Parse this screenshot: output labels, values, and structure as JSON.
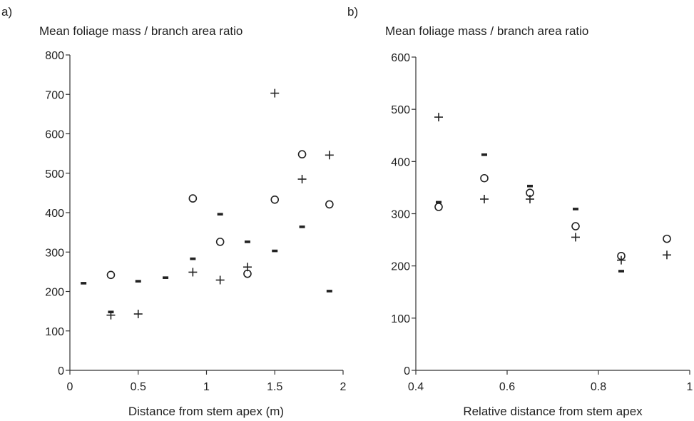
{
  "chart_data": [
    {
      "type": "scatter",
      "panel_label": "a)",
      "title": "Mean foliage mass / branch area ratio",
      "xlabel": "Distance from stem apex (m)",
      "ylabel": "",
      "xlim": [
        0,
        2
      ],
      "ylim": [
        0,
        800
      ],
      "xticks": [
        0,
        0.5,
        1,
        1.5,
        2
      ],
      "xtick_labels": [
        "0",
        "0.5",
        "1",
        "1.5",
        "2"
      ],
      "yticks": [
        0,
        100,
        200,
        300,
        400,
        500,
        600,
        700,
        800
      ],
      "ytick_labels": [
        "0",
        "100",
        "200",
        "300",
        "400",
        "500",
        "600",
        "700",
        "800"
      ],
      "grid": false,
      "series": [
        {
          "marker": "circle",
          "points": [
            [
              0.3,
              242
            ],
            [
              0.9,
              436
            ],
            [
              1.1,
              326
            ],
            [
              1.3,
              245
            ],
            [
              1.5,
              433
            ],
            [
              1.7,
              548
            ],
            [
              1.9,
              421
            ]
          ]
        },
        {
          "marker": "plus",
          "points": [
            [
              0.3,
              140
            ],
            [
              0.5,
              143
            ],
            [
              0.9,
              249
            ],
            [
              1.1,
              229
            ],
            [
              1.3,
              262
            ],
            [
              1.5,
              703
            ],
            [
              1.7,
              485
            ],
            [
              1.9,
              546
            ]
          ]
        },
        {
          "marker": "dash",
          "points": [
            [
              0.1,
              221
            ],
            [
              0.3,
              148
            ],
            [
              0.5,
              226
            ],
            [
              0.7,
              235
            ],
            [
              0.9,
              283
            ],
            [
              1.1,
              396
            ],
            [
              1.3,
              326
            ],
            [
              1.5,
              303
            ],
            [
              1.7,
              364
            ],
            [
              1.9,
              201
            ]
          ]
        }
      ]
    },
    {
      "type": "scatter",
      "panel_label": "b)",
      "title": "Mean foliage mass / branch area ratio",
      "xlabel": "Relative distance from stem apex",
      "ylabel": "",
      "xlim": [
        0.4,
        1
      ],
      "ylim": [
        0,
        600
      ],
      "xticks": [
        0.4,
        0.6,
        0.8,
        1
      ],
      "xtick_labels": [
        "0.4",
        "0.6",
        "0.8",
        "1"
      ],
      "yticks": [
        0,
        100,
        200,
        300,
        400,
        500,
        600
      ],
      "ytick_labels": [
        "0",
        "100",
        "200",
        "300",
        "400",
        "500",
        "600"
      ],
      "grid": false,
      "series": [
        {
          "marker": "circle",
          "points": [
            [
              0.45,
              313
            ],
            [
              0.55,
              368
            ],
            [
              0.65,
              340
            ],
            [
              0.75,
              276
            ],
            [
              0.85,
              219
            ],
            [
              0.95,
              252
            ]
          ]
        },
        {
          "marker": "plus",
          "points": [
            [
              0.45,
              485
            ],
            [
              0.55,
              328
            ],
            [
              0.65,
              328
            ],
            [
              0.75,
              255
            ],
            [
              0.85,
              211
            ],
            [
              0.95,
              221
            ]
          ]
        },
        {
          "marker": "dash",
          "points": [
            [
              0.45,
              322
            ],
            [
              0.55,
              413
            ],
            [
              0.65,
              353
            ],
            [
              0.75,
              309
            ],
            [
              0.85,
              190
            ]
          ]
        }
      ]
    }
  ]
}
